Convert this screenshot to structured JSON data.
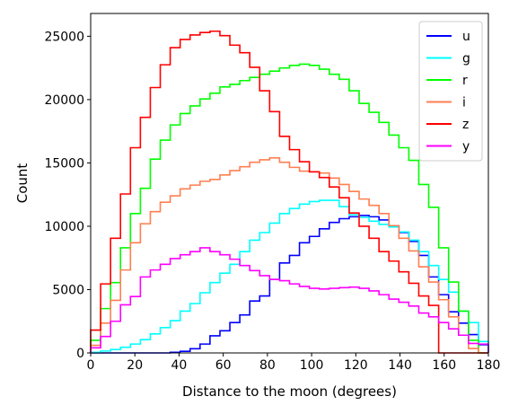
{
  "chart_data": {
    "type": "line",
    "xlabel": "Distance to the moon (degrees)",
    "ylabel": "Count",
    "xlim": [
      0,
      180
    ],
    "ylim": [
      0,
      26800
    ],
    "xticks": [
      0,
      20,
      40,
      60,
      80,
      100,
      120,
      140,
      160,
      180
    ],
    "yticks": [
      0,
      5000,
      10000,
      15000,
      20000,
      25000
    ],
    "grid": false,
    "legend_position": "top-right",
    "bin_edges": [
      0,
      4.5,
      9,
      13.5,
      18,
      22.5,
      27,
      31.5,
      36,
      40.5,
      45,
      49.5,
      54,
      58.5,
      63,
      67.5,
      72,
      76.5,
      81,
      85.5,
      90,
      94.5,
      99,
      103.5,
      108,
      112.5,
      117,
      121.5,
      126,
      130.5,
      135,
      139.5,
      144,
      148.5,
      153,
      157.5,
      162,
      166.5,
      171,
      175.5,
      180
    ],
    "series": [
      {
        "name": "u",
        "color": "#0000ff",
        "values": [
          0,
          0,
          0,
          0,
          0,
          0,
          0,
          0,
          50,
          130,
          330,
          700,
          1350,
          1750,
          2400,
          3000,
          4100,
          4500,
          5800,
          7100,
          7700,
          8700,
          9200,
          9800,
          10300,
          10600,
          10750,
          10850,
          10750,
          10500,
          10050,
          9500,
          8800,
          7700,
          6000,
          4600,
          3250,
          2350,
          1450,
          650
        ]
      },
      {
        "name": "g",
        "color": "#00ffff",
        "values": [
          50,
          150,
          270,
          450,
          700,
          1050,
          1500,
          2000,
          2550,
          3300,
          3900,
          4750,
          5550,
          6300,
          7000,
          8000,
          8900,
          9500,
          10250,
          11000,
          11400,
          11750,
          11950,
          12050,
          12050,
          11550,
          10900,
          10700,
          10400,
          10150,
          9950,
          9550,
          8900,
          8000,
          6900,
          5800,
          4800,
          3300,
          2400,
          900
        ]
      },
      {
        "name": "r",
        "color": "#00ff00",
        "values": [
          1000,
          3500,
          5550,
          8300,
          11000,
          13000,
          15300,
          16800,
          18000,
          18900,
          19500,
          20050,
          20500,
          21000,
          21200,
          21500,
          21750,
          22000,
          22250,
          22500,
          22700,
          22800,
          22700,
          22400,
          22000,
          21600,
          20700,
          19700,
          19000,
          18200,
          17200,
          16200,
          15200,
          13300,
          11500,
          8300,
          5600,
          3300,
          1000,
          0
        ]
      },
      {
        "name": "i",
        "color": "#ff7f50",
        "values": [
          600,
          2350,
          4150,
          6550,
          8700,
          10200,
          11150,
          11900,
          12400,
          12950,
          13250,
          13550,
          13700,
          14050,
          14400,
          14700,
          15050,
          15250,
          15400,
          15050,
          14650,
          14350,
          14300,
          14200,
          13800,
          13300,
          12750,
          12150,
          11650,
          11000,
          10050,
          9050,
          8050,
          6800,
          5600,
          4200,
          2850,
          1400,
          350,
          0
        ]
      },
      {
        "name": "z",
        "color": "#ff0000",
        "values": [
          1800,
          5450,
          9050,
          12550,
          16200,
          18600,
          20950,
          22750,
          24100,
          24750,
          25100,
          25300,
          25400,
          25050,
          24300,
          23700,
          22550,
          20700,
          19050,
          17100,
          16050,
          15100,
          14300,
          13850,
          13100,
          12250,
          11050,
          10000,
          9050,
          8000,
          7250,
          6400,
          5500,
          4500,
          3750,
          0,
          0,
          0,
          0,
          0
        ]
      },
      {
        "name": "y",
        "color": "#ff00ff",
        "values": [
          400,
          1300,
          2500,
          3800,
          4450,
          6000,
          6550,
          7000,
          7450,
          7750,
          8000,
          8300,
          8000,
          7750,
          7400,
          6900,
          6500,
          6100,
          5800,
          5700,
          5450,
          5250,
          5100,
          5050,
          5100,
          5150,
          5200,
          5100,
          4900,
          4600,
          4250,
          4000,
          3700,
          3150,
          2850,
          2400,
          1900,
          1400,
          750,
          700
        ]
      }
    ]
  }
}
